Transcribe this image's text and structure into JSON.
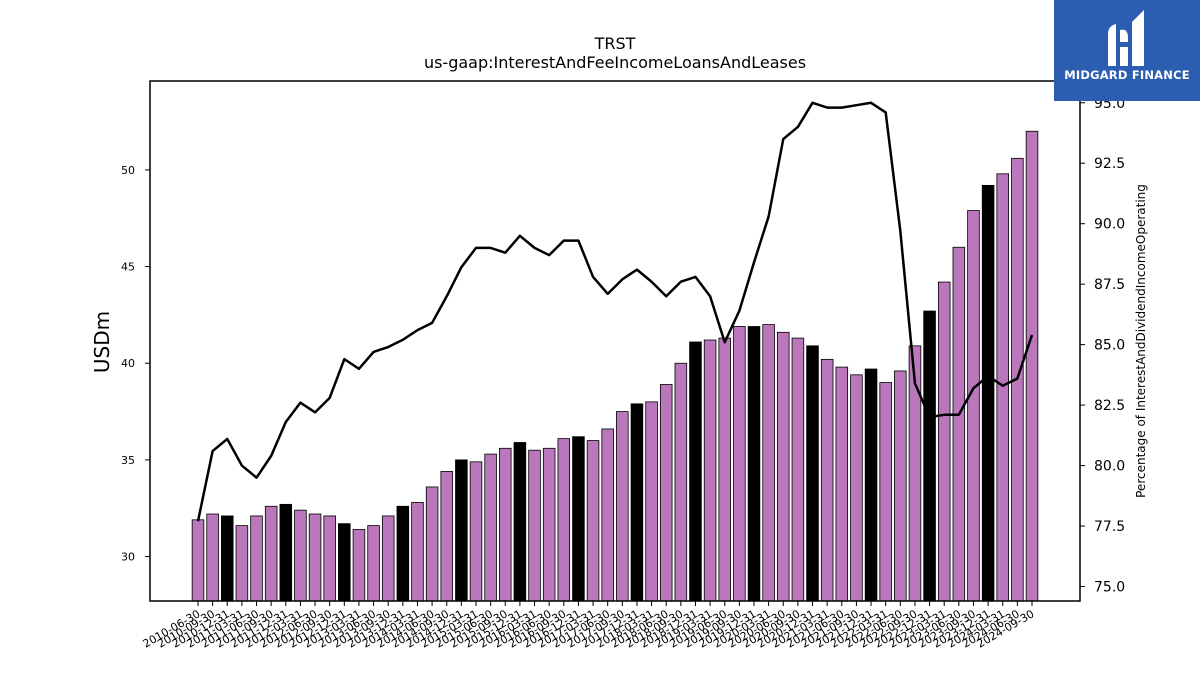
{
  "chart_data": {
    "type": "bar",
    "title": "TRST",
    "subtitle": "us-gaap:InterestAndFeeIncomeLoansAndLeases",
    "ylabel": "USDm",
    "y2label": "Percentage of InterestAndDividendIncomeOperating",
    "ylim": [
      27.7,
      54.6
    ],
    "y2lim": [
      74.4,
      95.9
    ],
    "yticks": [
      30,
      35,
      40,
      45,
      50
    ],
    "y2ticks": [
      75.0,
      77.5,
      80.0,
      82.5,
      85.0,
      87.5,
      90.0,
      92.5,
      95.0
    ],
    "y2tick_labels": [
      "75.0",
      "77.5",
      "80.0",
      "82.5",
      "85.0",
      "87.5",
      "90.0",
      "92.5",
      "95.0"
    ],
    "tick_labels": [
      "2010-06-30",
      "2010-09-30",
      "2010-12-31",
      "2011-03-31",
      "2011-06-30",
      "2011-09-30",
      "2011-12-31",
      "2012-03-31",
      "2012-06-30",
      "2012-09-30",
      "2012-12-31",
      "2013-03-31",
      "2013-06-30",
      "2013-09-30",
      "2013-12-31",
      "2014-03-31",
      "2014-06-30",
      "2014-09-30",
      "2014-12-31",
      "2015-03-31",
      "2015-06-30",
      "2015-09-30",
      "2015-12-31",
      "2016-03-31",
      "2016-06-30",
      "2016-09-30",
      "2016-12-31",
      "2017-03-31",
      "2017-06-30",
      "2017-09-30",
      "2017-12-31",
      "2018-03-31",
      "2018-06-30",
      "2018-09-30",
      "2018-12-31",
      "2019-03-31",
      "2019-06-30",
      "2019-09-30",
      "2019-12-31",
      "2020-03-31",
      "2020-06-30",
      "2020-09-30",
      "2020-12-31",
      "2021-03-31",
      "2021-06-30",
      "2021-09-30",
      "2021-12-31",
      "2022-03-31",
      "2022-06-30",
      "2022-09-30",
      "2022-12-31",
      "2023-03-31",
      "2023-06-30",
      "2023-09-30",
      "2023-12-31",
      "2024-03-31",
      "2024-06-30",
      "2024-09-30"
    ],
    "values": [
      31.9,
      32.2,
      32.1,
      31.6,
      32.1,
      32.6,
      32.7,
      32.4,
      32.2,
      32.1,
      31.7,
      31.4,
      31.6,
      32.1,
      32.6,
      32.8,
      33.6,
      34.4,
      35.0,
      34.9,
      35.3,
      35.6,
      35.9,
      35.5,
      35.6,
      36.1,
      36.2,
      36.0,
      36.6,
      37.5,
      37.9,
      38.0,
      38.9,
      40.0,
      41.1,
      41.2,
      41.3,
      41.9,
      41.9,
      42.0,
      41.6,
      41.3,
      40.9,
      40.2,
      39.8,
      39.4,
      39.7,
      39.0,
      39.6,
      40.9,
      42.7,
      44.2,
      46.0,
      47.9,
      49.2,
      49.8,
      50.6,
      52.0
    ],
    "bar_colors": [
      "#bb77bb",
      "#bb77bb",
      "#000000",
      "#bb77bb",
      "#bb77bb",
      "#bb77bb",
      "#000000",
      "#bb77bb",
      "#bb77bb",
      "#bb77bb",
      "#000000",
      "#bb77bb",
      "#bb77bb",
      "#bb77bb",
      "#000000",
      "#bb77bb",
      "#bb77bb",
      "#bb77bb",
      "#000000",
      "#bb77bb",
      "#bb77bb",
      "#bb77bb",
      "#000000",
      "#bb77bb",
      "#bb77bb",
      "#bb77bb",
      "#000000",
      "#bb77bb",
      "#bb77bb",
      "#bb77bb",
      "#000000",
      "#bb77bb",
      "#bb77bb",
      "#bb77bb",
      "#000000",
      "#bb77bb",
      "#bb77bb",
      "#bb77bb",
      "#000000",
      "#bb77bb",
      "#bb77bb",
      "#bb77bb",
      "#000000",
      "#bb77bb",
      "#bb77bb",
      "#bb77bb",
      "#000000",
      "#bb77bb",
      "#bb77bb",
      "#bb77bb",
      "#000000",
      "#bb77bb",
      "#bb77bb",
      "#bb77bb",
      "#000000",
      "#bb77bb",
      "#bb77bb",
      "#bb77bb"
    ],
    "line_values": [
      77.7,
      80.6,
      81.1,
      80.0,
      79.5,
      80.4,
      81.8,
      82.6,
      82.2,
      82.8,
      84.4,
      84.0,
      84.7,
      84.9,
      85.2,
      85.6,
      85.9,
      87.0,
      88.2,
      89.0,
      89.0,
      88.8,
      89.5,
      89.0,
      88.7,
      89.3,
      89.3,
      87.8,
      87.1,
      87.7,
      88.1,
      87.6,
      87.0,
      87.6,
      87.8,
      87.0,
      85.1,
      86.4,
      88.4,
      90.3,
      93.5,
      94.0,
      95.0,
      94.8,
      94.8,
      94.9,
      95.0,
      94.6,
      89.7,
      83.4,
      82.0,
      82.1,
      82.1,
      83.2,
      83.7,
      83.3,
      83.6,
      85.4
    ],
    "grid": false,
    "legend": "none"
  },
  "colors": {
    "bar": "#bb77bb",
    "bar_highlight": "#000000",
    "line": "#000000",
    "logo_bg": "#2b5db0"
  },
  "logo": {
    "text": "MIDGARD FINANCE",
    "icon": "midgard-logo-icon"
  }
}
